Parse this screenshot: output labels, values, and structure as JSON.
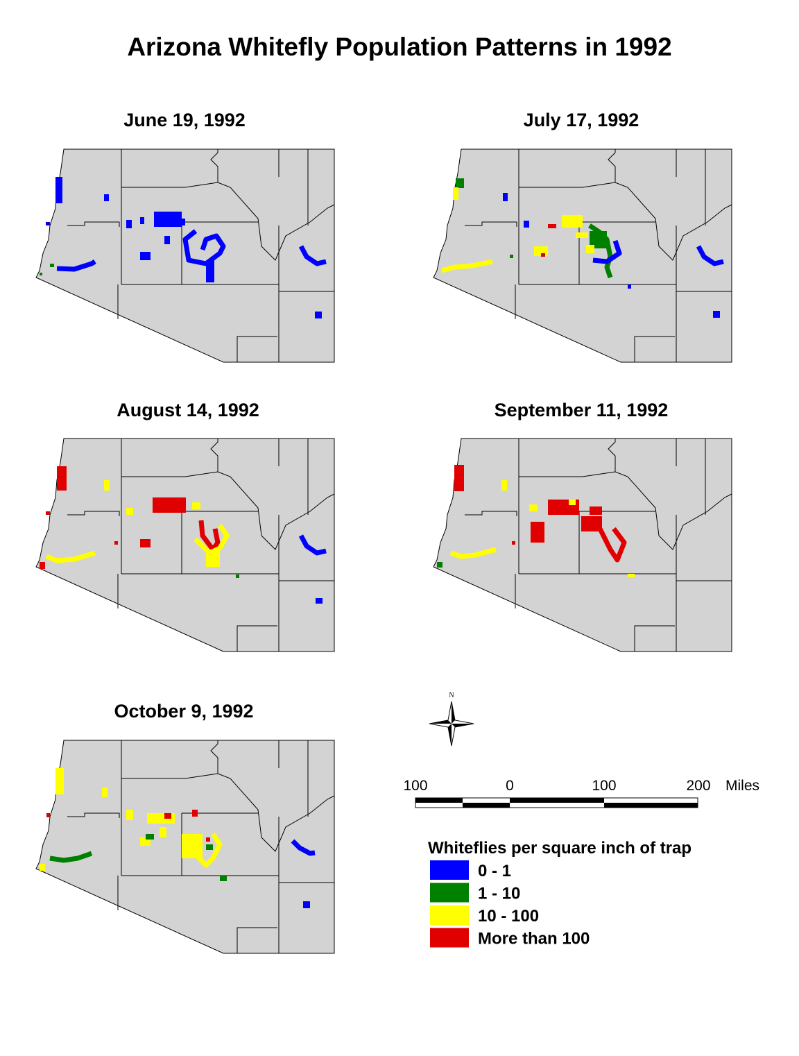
{
  "title": "Arizona Whitefly Population Patterns in 1992",
  "maps": [
    {
      "date": "June 19, 1992"
    },
    {
      "date": "July 17, 1992"
    },
    {
      "date": "August 14, 1992"
    },
    {
      "date": "September 11, 1992"
    },
    {
      "date": "October 9, 1992"
    }
  ],
  "compass": "N",
  "scale_bar": {
    "labels": [
      "100",
      "0",
      "100",
      "200"
    ],
    "unit": "Miles"
  },
  "legend": {
    "title": "Whiteflies per square inch of trap",
    "items": [
      {
        "label": "0 - 1",
        "color": "#0000ff"
      },
      {
        "label": "1 - 10",
        "color": "#008000"
      },
      {
        "label": "10 - 100",
        "color": "#ffff00"
      },
      {
        "label": "More than 100",
        "color": "#e00000"
      }
    ]
  }
}
